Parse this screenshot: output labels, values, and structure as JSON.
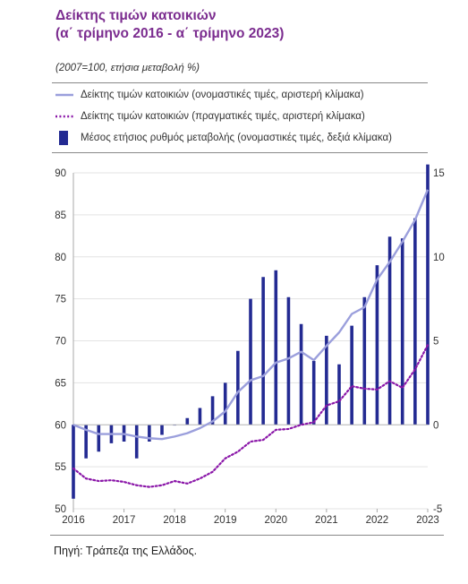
{
  "chart_data": {
    "type": "bar+line",
    "title": "Δείκτης τιμών κατοικιών",
    "title2": "(α΄ τρίμηνο 2016 - α΄ τρίμηνο 2023)",
    "subtitle": "(2007=100, ετήσια μεταβολή %)",
    "source": "Πηγή: Τράπεζα της Ελλάδος.",
    "ylim_left": [
      50,
      90
    ],
    "yticks_left": [
      50,
      55,
      60,
      65,
      70,
      75,
      80,
      85,
      90
    ],
    "ylim_right": [
      -5,
      15
    ],
    "yticks_right": [
      -5,
      0,
      5,
      10,
      15
    ],
    "xticks": [
      "2016",
      "2017",
      "2018",
      "2019",
      "2020",
      "2021",
      "2022",
      "2023"
    ],
    "x": [
      "2016Q1",
      "2016Q2",
      "2016Q3",
      "2016Q4",
      "2017Q1",
      "2017Q2",
      "2017Q3",
      "2017Q4",
      "2018Q1",
      "2018Q2",
      "2018Q3",
      "2018Q4",
      "2019Q1",
      "2019Q2",
      "2019Q3",
      "2019Q4",
      "2020Q1",
      "2020Q2",
      "2020Q3",
      "2020Q4",
      "2021Q1",
      "2021Q2",
      "2021Q3",
      "2021Q4",
      "2022Q1",
      "2022Q2",
      "2022Q3",
      "2022Q4",
      "2023Q1"
    ],
    "colors": {
      "nominal": "#9b9fdc",
      "real": "#8a16a8",
      "bars": "#232a92",
      "title": "#7b2c8f"
    },
    "series": [
      {
        "name": "Δείκτης τιμών κατοικιών (ονομαστικές τιμές, αριστερή κλίμακα)",
        "axis": "left",
        "style": "line",
        "values": [
          60.0,
          59.4,
          58.9,
          58.9,
          58.9,
          58.6,
          58.4,
          58.3,
          58.6,
          59.0,
          59.6,
          60.4,
          61.6,
          63.9,
          65.3,
          65.8,
          67.4,
          67.9,
          68.7,
          67.7,
          69.4,
          71.0,
          73.2,
          74.0,
          77.3,
          79.4,
          81.8,
          84.4,
          88.0
        ]
      },
      {
        "name": "Δείκτης τιμών κατοικιών (πραγματικές τιμές, αριστερή κλίμακα)",
        "axis": "left",
        "style": "dotted",
        "values": [
          54.8,
          53.6,
          53.3,
          53.4,
          53.2,
          52.8,
          52.6,
          52.8,
          53.3,
          53.0,
          53.6,
          54.4,
          56.0,
          56.8,
          58.0,
          58.2,
          59.4,
          59.5,
          60.0,
          60.3,
          62.3,
          62.8,
          64.6,
          64.3,
          64.2,
          65.2,
          64.4,
          66.6,
          69.5
        ]
      },
      {
        "name": "Μέσος ετήσιος ρυθμός μεταβολής (ονομαστικές τιμές, δεξιά κλίμακα)",
        "axis": "right",
        "style": "bar",
        "values": [
          -4.4,
          -2.0,
          -1.6,
          -1.1,
          -1.0,
          -2.0,
          -1.0,
          -0.6,
          0.0,
          0.4,
          1.0,
          1.7,
          2.5,
          4.4,
          7.5,
          8.8,
          9.2,
          7.6,
          6.0,
          3.8,
          5.3,
          3.6,
          5.9,
          7.6,
          9.5,
          11.2,
          11.1,
          12.3,
          15.5
        ]
      }
    ]
  }
}
